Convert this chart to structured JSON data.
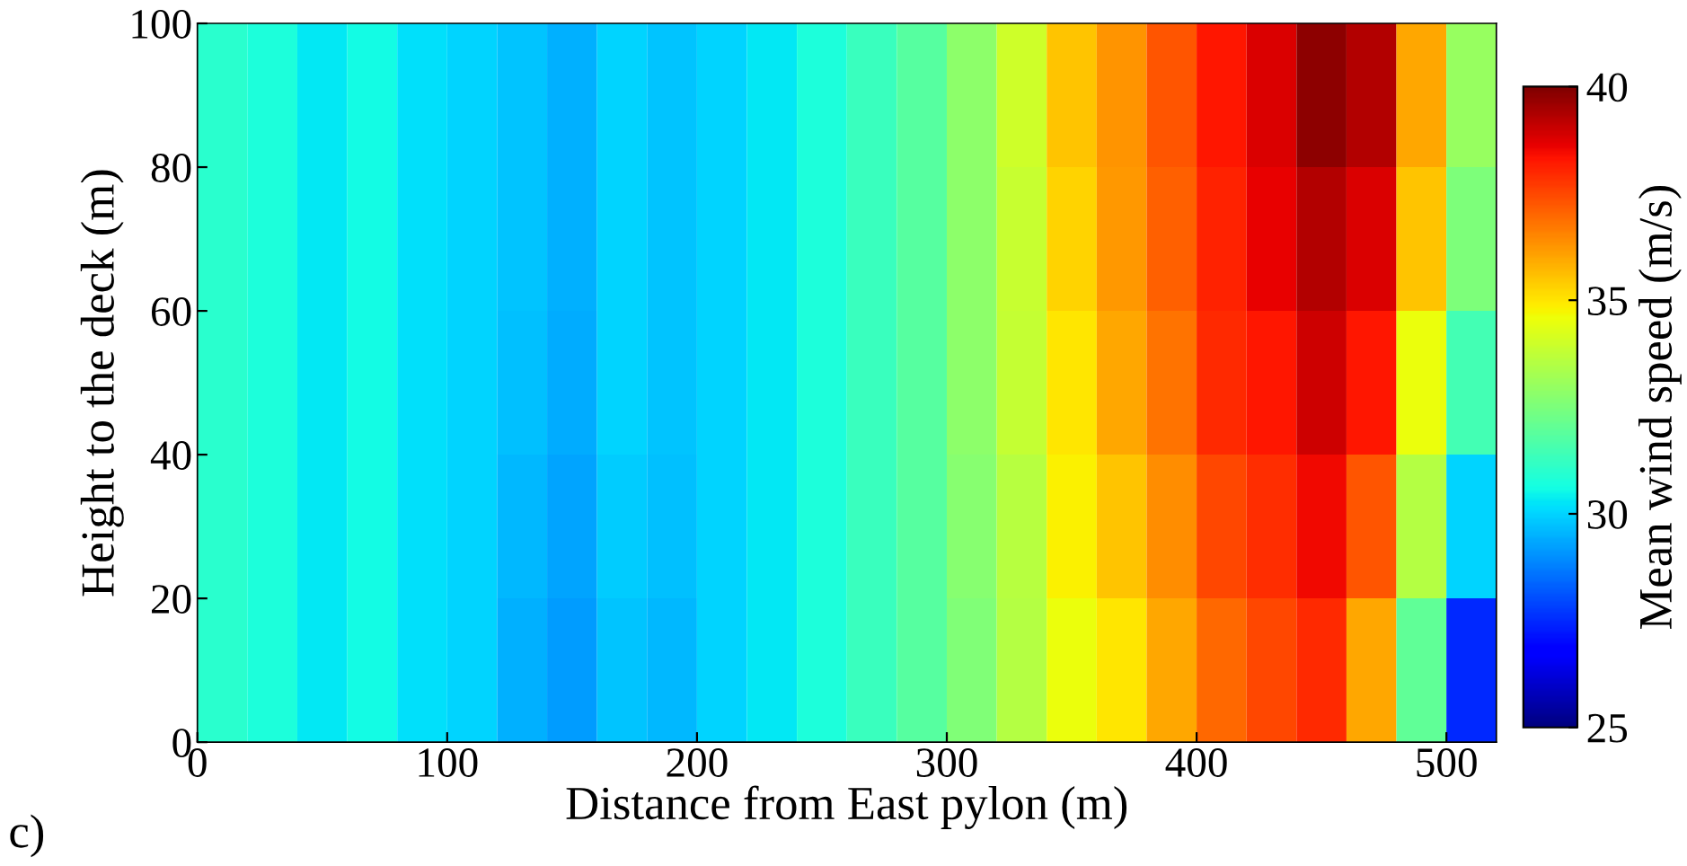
{
  "chart_data": {
    "type": "heatmap",
    "xlabel": "Distance from East pylon (m)",
    "ylabel": "Height to the deck (m)",
    "clabel": "Mean wind speed (m/s)",
    "annotations": [
      "c)"
    ],
    "x": [
      10,
      30,
      50,
      70,
      90,
      110,
      130,
      150,
      170,
      190,
      210,
      230,
      250,
      270,
      290,
      310,
      330,
      350,
      370,
      390,
      410,
      430,
      450,
      470,
      490,
      510
    ],
    "cells": [
      [
        31.0,
        30.8,
        30.3,
        30.6,
        30.2,
        30.0,
        29.8,
        29.5,
        30.0,
        29.8,
        30.0,
        30.3,
        30.8,
        31.3,
        31.8,
        32.8,
        34.0,
        35.5,
        36.3,
        37.3,
        38.3,
        38.8,
        39.8,
        39.3,
        36.0,
        33.0
      ],
      [
        31.0,
        30.8,
        30.3,
        30.6,
        30.2,
        30.0,
        29.8,
        29.5,
        30.0,
        29.8,
        30.0,
        30.3,
        30.8,
        31.3,
        31.8,
        32.8,
        33.9,
        35.3,
        36.2,
        37.1,
        38.1,
        38.6,
        39.3,
        38.8,
        35.5,
        32.5
      ],
      [
        31.0,
        30.8,
        30.3,
        30.6,
        30.2,
        30.0,
        29.7,
        29.4,
        30.0,
        29.8,
        30.0,
        30.3,
        30.8,
        31.3,
        31.8,
        32.8,
        33.8,
        35.0,
        36.0,
        36.8,
        38.0,
        38.3,
        39.0,
        38.3,
        34.5,
        31.5
      ],
      [
        31.0,
        30.8,
        30.3,
        30.6,
        30.2,
        30.0,
        29.6,
        29.3,
        29.9,
        29.7,
        30.0,
        30.3,
        30.8,
        31.3,
        31.8,
        32.7,
        33.6,
        34.8,
        35.5,
        36.4,
        37.5,
        37.9,
        38.5,
        37.3,
        33.5,
        30.0
      ],
      [
        31.0,
        30.8,
        30.3,
        30.6,
        30.2,
        30.0,
        29.5,
        29.2,
        29.8,
        29.6,
        30.0,
        30.3,
        30.8,
        31.3,
        31.8,
        32.6,
        33.5,
        34.5,
        35.0,
        36.0,
        37.0,
        37.5,
        38.0,
        36.0,
        32.0,
        27.5
      ]
    ],
    "xlim": [
      0,
      520
    ],
    "ylim": [
      0,
      100
    ],
    "xticks": [
      0,
      100,
      200,
      300,
      400,
      500
    ],
    "yticks": [
      0,
      20,
      40,
      60,
      80,
      100
    ],
    "clim": [
      25,
      40
    ],
    "cticks": [
      25,
      30,
      35,
      40
    ]
  }
}
